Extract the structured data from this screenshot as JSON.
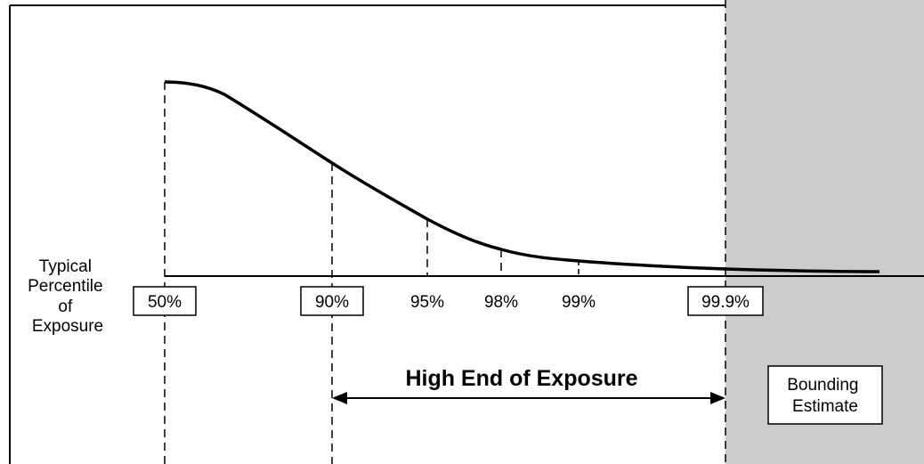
{
  "axis": {
    "title_lines": [
      "Typical",
      "Percentile",
      "of",
      "Exposure"
    ],
    "percentiles": [
      {
        "label": "50%",
        "boxed": true
      },
      {
        "label": "90%",
        "boxed": true
      },
      {
        "label": "95%",
        "boxed": false
      },
      {
        "label": "98%",
        "boxed": false
      },
      {
        "label": "99%",
        "boxed": false
      },
      {
        "label": "99.9%",
        "boxed": true
      }
    ]
  },
  "range": {
    "label": "High End of Exposure",
    "from": "90%",
    "to": "99.9%"
  },
  "bounding": {
    "label_lines": [
      "Bounding",
      "Estimate"
    ],
    "shade_color": "#cccccc"
  },
  "colors": {
    "line": "#000000",
    "background": "#ffffff"
  }
}
